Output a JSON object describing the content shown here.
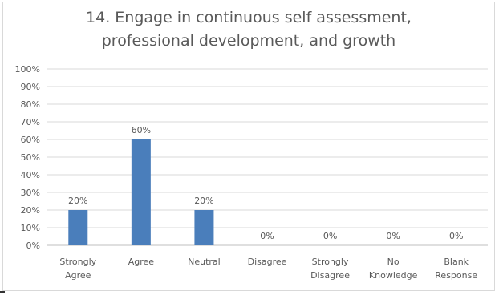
{
  "chart_data": {
    "type": "bar",
    "title_lines": [
      "14.  Engage in continuous self assessment,",
      "professional development, and growth"
    ],
    "categories": [
      [
        "Strongly",
        "Agree"
      ],
      [
        "Agree"
      ],
      [
        "Neutral"
      ],
      [
        "Disagree"
      ],
      [
        "Strongly",
        "Disagree"
      ],
      [
        "No",
        "Knowledge"
      ],
      [
        "Blank",
        "Response"
      ]
    ],
    "values": [
      20,
      60,
      20,
      0,
      0,
      0,
      0
    ],
    "data_labels": [
      "20%",
      "60%",
      "20%",
      "0%",
      "0%",
      "0%",
      "0%"
    ],
    "y_ticks": [
      "0%",
      "10%",
      "20%",
      "30%",
      "40%",
      "50%",
      "60%",
      "70%",
      "80%",
      "90%",
      "100%"
    ],
    "ylim": [
      0,
      100
    ],
    "grid": true,
    "bar_color": "#4a7ebb",
    "grid_color": "#d9d9d9"
  }
}
